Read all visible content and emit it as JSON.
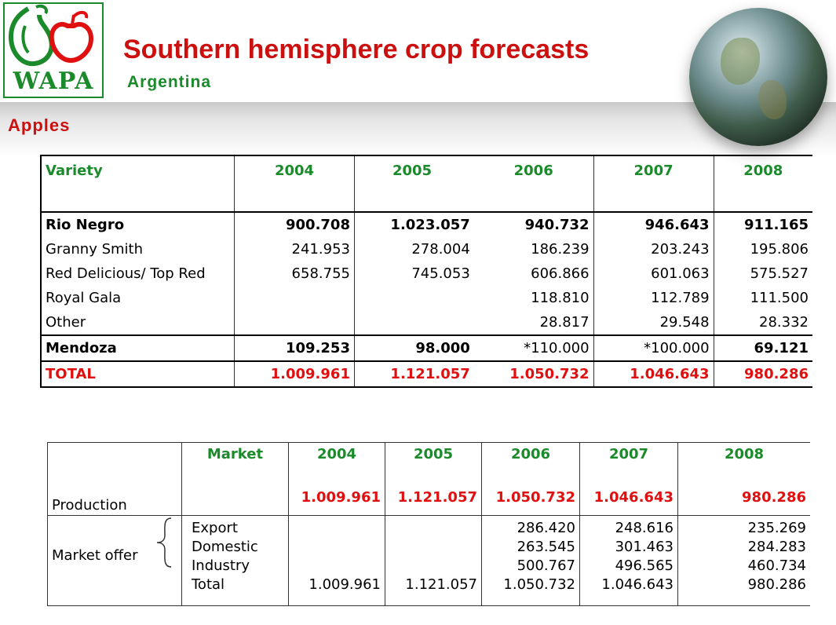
{
  "header": {
    "logo_text": "WAPA",
    "title": "Southern hemisphere crop forecasts",
    "subtitle": "Argentina",
    "section": "Apples"
  },
  "table1": {
    "columns": [
      "Variety",
      "2004",
      "2005",
      "2006",
      "2007",
      "2008"
    ],
    "rows": [
      {
        "label": "Rio Negro",
        "values": [
          "900.708",
          "1.023.057",
          "940.732",
          "946.643",
          "911.165"
        ]
      },
      {
        "label": "Granny Smith",
        "values": [
          "241.953",
          "278.004",
          "186.239",
          "203.243",
          "195.806"
        ]
      },
      {
        "label": "Red Delicious/ Top Red",
        "values": [
          "658.755",
          "745.053",
          "606.866",
          "601.063",
          "575.527"
        ]
      },
      {
        "label": "Royal Gala",
        "values": [
          "",
          "",
          "118.810",
          "112.789",
          "111.500"
        ]
      },
      {
        "label": "Other",
        "values": [
          "",
          "",
          "28.817",
          "29.548",
          "28.332"
        ]
      },
      {
        "label": "Mendoza",
        "values": [
          "109.253",
          "98.000",
          "*110.000",
          "*100.000",
          "69.121"
        ]
      },
      {
        "label": "TOTAL",
        "values": [
          "1.009.961",
          "1.121.057",
          "1.050.732",
          "1.046.643",
          "980.286"
        ]
      }
    ]
  },
  "table2": {
    "columns": [
      "Market",
      "2004",
      "2005",
      "2006",
      "2007",
      "2008"
    ],
    "production_label": "Production",
    "production_values": [
      "1.009.961",
      "1.121.057",
      "1.050.732",
      "1.046.643",
      "980.286"
    ],
    "market_offer_label": "Market offer",
    "market_items": [
      "Export",
      "Domestic",
      "Industry",
      "Total"
    ],
    "market_values": [
      [
        "",
        "",
        "",
        "1.009.961"
      ],
      [
        "",
        "",
        "",
        "1.121.057"
      ],
      [
        "286.420",
        "263.545",
        "500.767",
        "1.050.732"
      ],
      [
        "248.616",
        "301.463",
        "496.565",
        "1.046.643"
      ],
      [
        "235.269",
        "284.283",
        "460.734",
        "980.286"
      ]
    ]
  },
  "colors": {
    "title_red": "#cc1010",
    "brand_green": "#1a8a2a",
    "total_red": "#e01010"
  }
}
